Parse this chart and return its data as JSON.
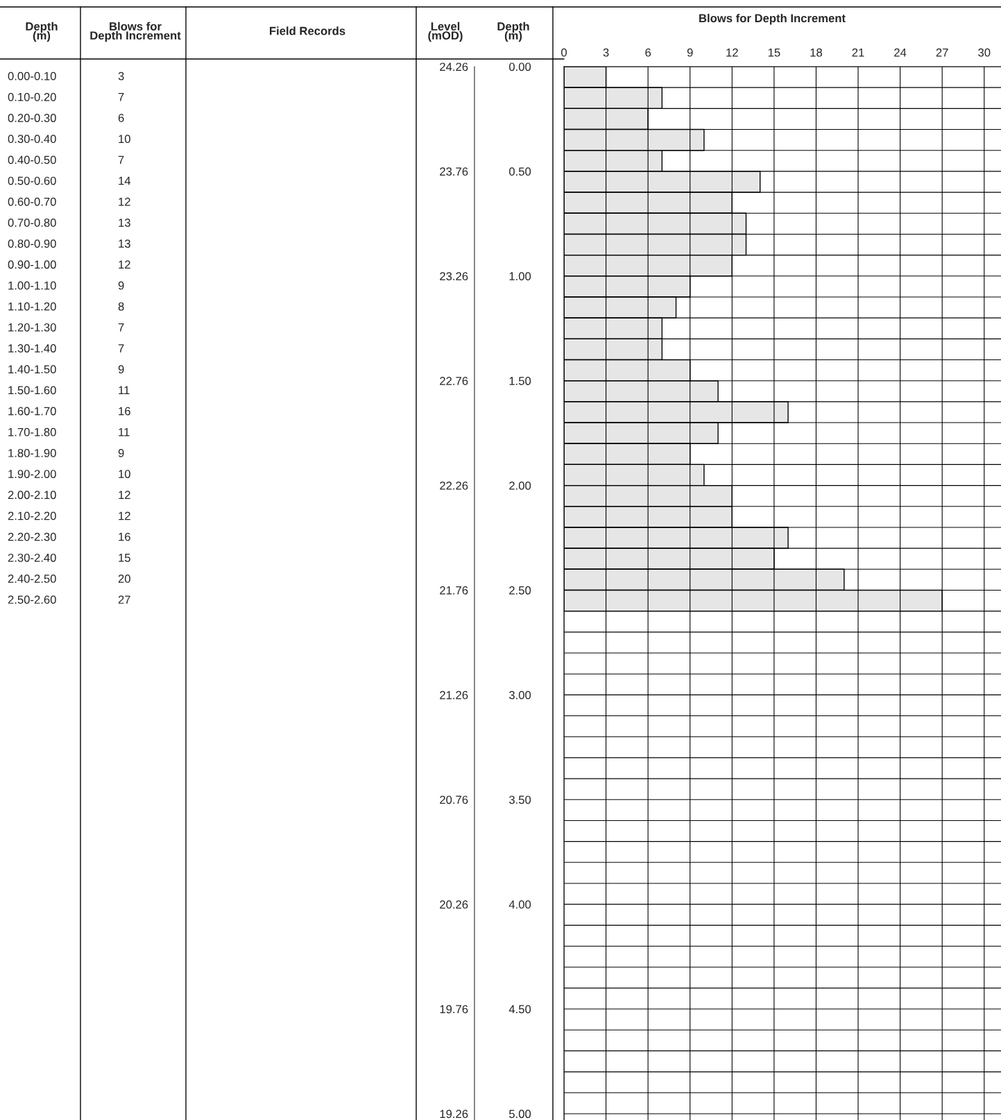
{
  "chart_data": {
    "type": "bar",
    "orientation": "horizontal",
    "title": "Blows for Depth Increment",
    "ylabel": "Depth\n(m)",
    "y2label": "Level\n(mOD)",
    "annotations": [
      "Depth\n(m)",
      "Blows for\nDepth Increment",
      "Field Records",
      "0.00-0.10",
      "0.10-0.20",
      "0.20-0.30",
      "0.30-0.40",
      "0.40-0.50",
      "0.50-0.60",
      "0.60-0.70",
      "0.70-0.80",
      "0.80-0.90",
      "0.90-1.00",
      "1.00-1.10",
      "1.10-1.20",
      "1.20-1.30",
      "1.30-1.40",
      "1.40-1.50",
      "1.50-1.60",
      "1.60-1.70",
      "1.70-1.80",
      "1.80-1.90",
      "1.90-2.00",
      "2.00-2.10",
      "2.10-2.20",
      "2.20-2.30",
      "2.30-2.40",
      "2.40-2.50",
      "2.50-2.60",
      "3",
      "7",
      "6",
      "10",
      "7",
      "14",
      "12",
      "13",
      "13",
      "12",
      "9",
      "8",
      "7",
      "7",
      "9",
      "11",
      "16",
      "11",
      "9",
      "10",
      "12",
      "12",
      "16",
      "15",
      "20",
      "27"
    ],
    "x": [
      0.05,
      0.15,
      0.25,
      0.35,
      0.45,
      0.55,
      0.65,
      0.75,
      0.85,
      0.95,
      1.05,
      1.15,
      1.25,
      1.35,
      1.45,
      1.55,
      1.65,
      1.75,
      1.85,
      1.95,
      2.05,
      2.15,
      2.25,
      2.35,
      2.45,
      2.55
    ],
    "values": [
      3,
      7,
      6,
      10,
      7,
      14,
      12,
      13,
      13,
      12,
      9,
      8,
      7,
      7,
      9,
      11,
      16,
      11,
      9,
      10,
      12,
      12,
      16,
      15,
      20,
      27
    ],
    "color": "#e6e6e6",
    "xlim": [
      0,
      31.2
    ],
    "xticks": [
      0,
      3,
      6,
      9,
      12,
      15,
      18,
      21,
      24,
      27,
      30
    ],
    "ylim": [
      5.03,
      0
    ],
    "yticks": [
      {
        "value": 0,
        "label": "0.00"
      },
      {
        "value": 0.1,
        "label": null
      },
      {
        "value": 0.2,
        "label": null
      },
      {
        "value": 0.3,
        "label": null
      },
      {
        "value": 0.4,
        "label": null
      },
      {
        "value": 0.5,
        "label": "0.50"
      },
      {
        "value": 0.6,
        "label": null
      },
      {
        "value": 0.7,
        "label": null
      },
      {
        "value": 0.8,
        "label": null
      },
      {
        "value": 0.9,
        "label": null
      },
      {
        "value": 1.0,
        "label": "1.00"
      },
      {
        "value": 1.1,
        "label": null
      },
      {
        "value": 1.2,
        "label": null
      },
      {
        "value": 1.3,
        "label": null
      },
      {
        "value": 1.4,
        "label": null
      },
      {
        "value": 1.5,
        "label": "1.50"
      },
      {
        "value": 1.6,
        "label": null
      },
      {
        "value": 1.7,
        "label": null
      },
      {
        "value": 1.8,
        "label": null
      },
      {
        "value": 1.9,
        "label": null
      },
      {
        "value": 2.0,
        "label": "2.00"
      },
      {
        "value": 2.1,
        "label": null
      },
      {
        "value": 2.2,
        "label": null
      },
      {
        "value": 2.3,
        "label": null
      },
      {
        "value": 2.4,
        "label": null
      },
      {
        "value": 2.5,
        "label": "2.50"
      },
      {
        "value": 2.6,
        "label": null
      },
      {
        "value": 2.7,
        "label": null
      },
      {
        "value": 2.8,
        "label": null
      },
      {
        "value": 2.9,
        "label": null
      },
      {
        "value": 3.0,
        "label": "3.00"
      },
      {
        "value": 3.1,
        "label": null
      },
      {
        "value": 3.2,
        "label": null
      },
      {
        "value": 3.3,
        "label": null
      },
      {
        "value": 3.4,
        "label": null
      },
      {
        "value": 3.5,
        "label": "3.50"
      },
      {
        "value": 3.6,
        "label": null
      },
      {
        "value": 3.7,
        "label": null
      },
      {
        "value": 3.8,
        "label": null
      },
      {
        "value": 3.9,
        "label": null
      },
      {
        "value": 4.0,
        "label": "4.00"
      },
      {
        "value": 4.1,
        "label": null
      },
      {
        "value": 4.2,
        "label": null
      },
      {
        "value": 4.3,
        "label": null
      },
      {
        "value": 4.4,
        "label": null
      },
      {
        "value": 4.5,
        "label": "4.50"
      },
      {
        "value": 4.6,
        "label": null
      },
      {
        "value": 4.7,
        "label": null
      },
      {
        "value": 4.8,
        "label": null
      },
      {
        "value": 4.9,
        "label": null
      },
      {
        "value": 5.0,
        "label": "5.00"
      }
    ],
    "y2lim": [
      19.23,
      24.26
    ],
    "y2ticks": [
      24.26,
      23.76,
      23.26,
      22.76,
      22.26,
      21.76,
      21.26,
      20.76,
      20.26,
      19.76,
      19.26
    ],
    "grid": true
  }
}
